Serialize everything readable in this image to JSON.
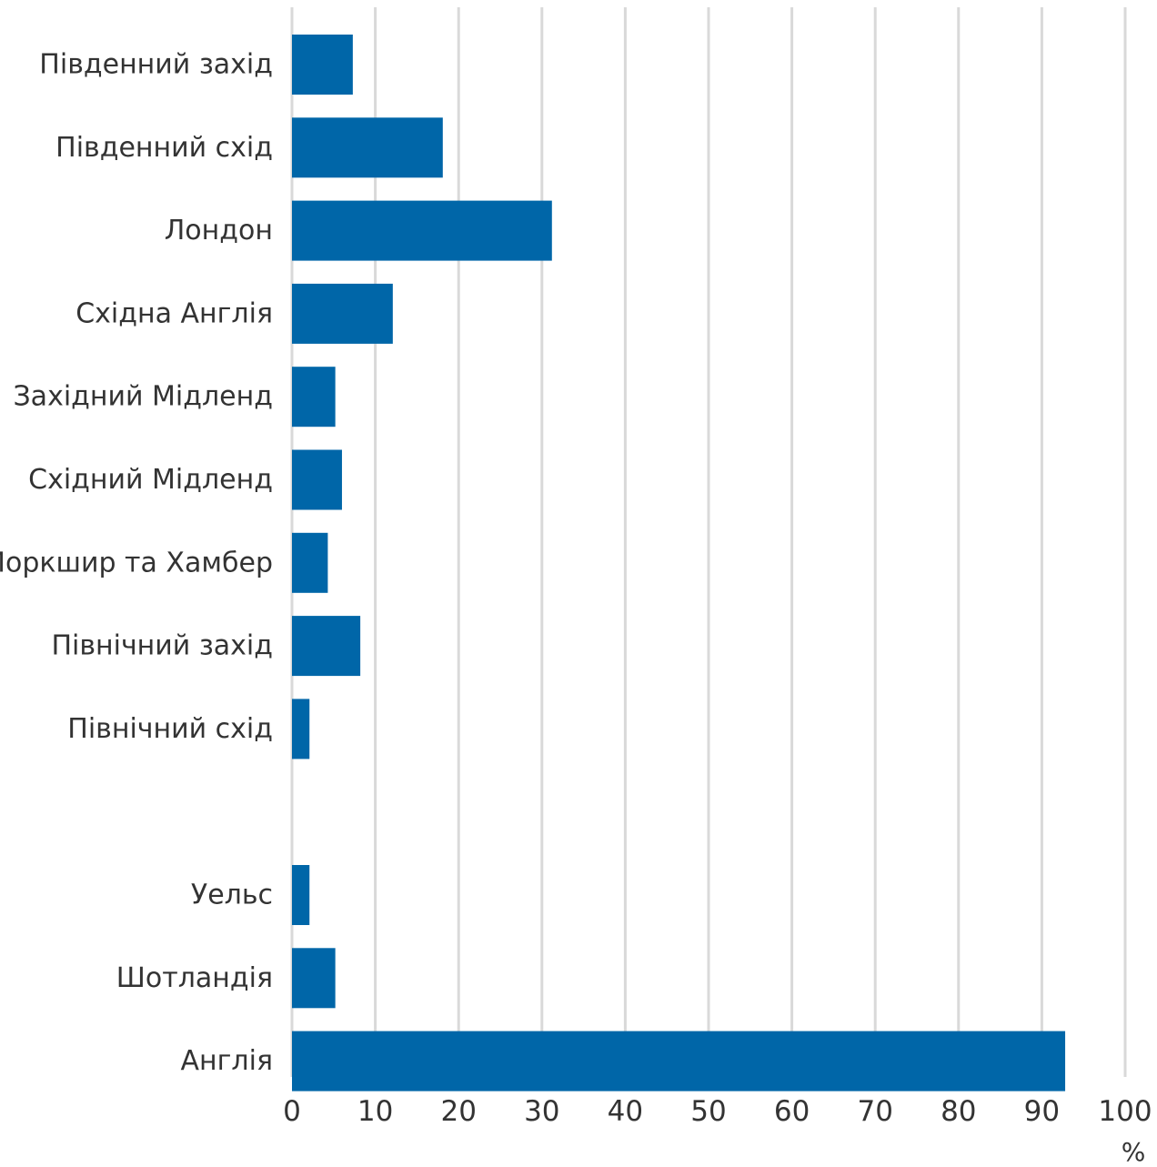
{
  "chart_data": {
    "type": "bar",
    "orientation": "horizontal",
    "categories": [
      "Південний захід",
      "Південний схід",
      "Лондон",
      "Східна Англія",
      "Західний Мідленд",
      "Східний Мідленд",
      "Йоркшир та Хамбер",
      "Північний захід",
      "Північний схід",
      "",
      "Уельс",
      "Шотландія",
      "Англія"
    ],
    "values": [
      7.3,
      18.1,
      31.2,
      12.1,
      5.2,
      6.0,
      4.3,
      8.2,
      2.1,
      null,
      2.1,
      5.2,
      92.8
    ],
    "xticks": [
      "0",
      "10",
      "20",
      "30",
      "40",
      "50",
      "60",
      "70",
      "80",
      "90",
      "100"
    ],
    "xlim": [
      0,
      100
    ],
    "xlabel": "%",
    "ylabel": "",
    "title": "",
    "grid": "vertical",
    "colors": {
      "bar": "#0066a8",
      "grid": "#d9d9d9",
      "text": "#333333"
    }
  }
}
